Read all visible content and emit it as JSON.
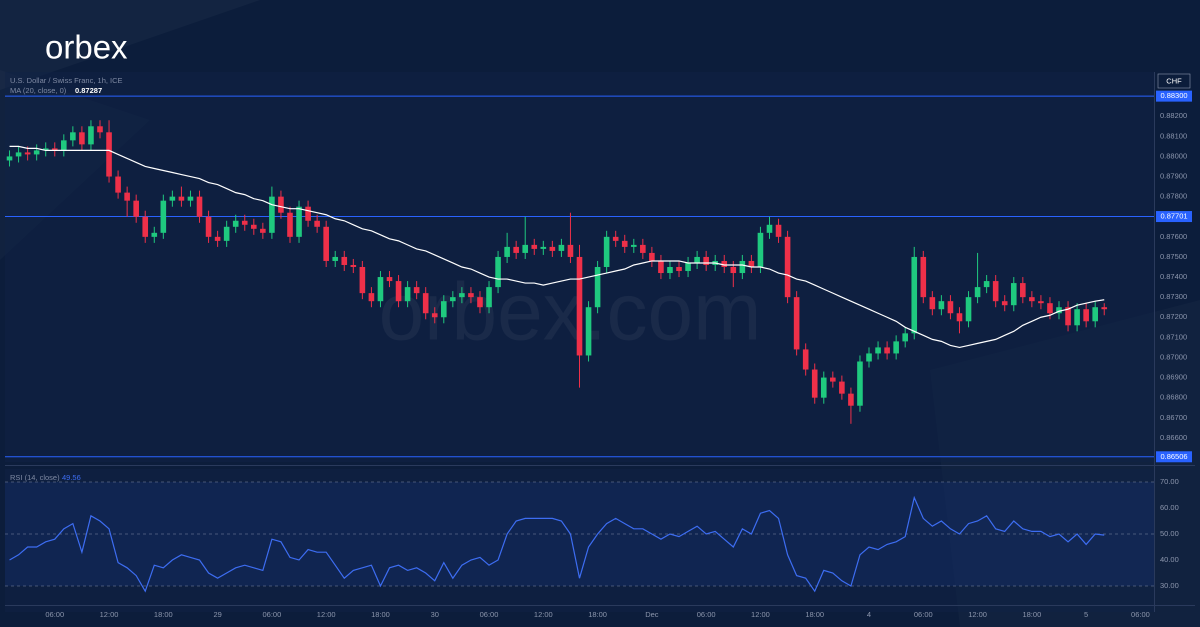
{
  "brand": {
    "logo": "orbex",
    "watermark": "orbex.com"
  },
  "chart_data": [
    {
      "type": "candlestick",
      "title": "U.S. Dollar / Swiss Franc, 1h, ICE",
      "currency": "CHF",
      "up_color": "#1fc97f",
      "down_color": "#ee3049",
      "xlim": [
        0.5,
        127.5
      ],
      "xticks": [
        {
          "value": 6,
          "label": "06:00"
        },
        {
          "value": 12,
          "label": "12:00"
        },
        {
          "value": 18,
          "label": "18:00"
        },
        {
          "value": 24,
          "label": "29"
        },
        {
          "value": 30,
          "label": "06:00"
        },
        {
          "value": 36,
          "label": "12:00"
        },
        {
          "value": 42,
          "label": "18:00"
        },
        {
          "value": 48,
          "label": "30"
        },
        {
          "value": 54,
          "label": "06:00"
        },
        {
          "value": 60,
          "label": "12:00"
        },
        {
          "value": 66,
          "label": "18:00"
        },
        {
          "value": 72,
          "label": "Dec"
        },
        {
          "value": 78,
          "label": "06:00"
        },
        {
          "value": 84,
          "label": "12:00"
        },
        {
          "value": 90,
          "label": "18:00"
        },
        {
          "value": 96,
          "label": "4"
        },
        {
          "value": 102,
          "label": "06:00"
        },
        {
          "value": 108,
          "label": "12:00"
        },
        {
          "value": 114,
          "label": "18:00"
        },
        {
          "value": 120,
          "label": "5"
        },
        {
          "value": 126,
          "label": "06:00"
        }
      ],
      "ylim": [
        0.8648,
        0.8842
      ],
      "yticks": [
        {
          "value": 0.866,
          "label": "0.86600"
        },
        {
          "value": 0.867,
          "label": "0.86700"
        },
        {
          "value": 0.868,
          "label": "0.86800"
        },
        {
          "value": 0.869,
          "label": "0.86900"
        },
        {
          "value": 0.87,
          "label": "0.87000"
        },
        {
          "value": 0.871,
          "label": "0.87100"
        },
        {
          "value": 0.872,
          "label": "0.87200"
        },
        {
          "value": 0.873,
          "label": "0.87300"
        },
        {
          "value": 0.874,
          "label": "0.87400"
        },
        {
          "value": 0.875,
          "label": "0.87500"
        },
        {
          "value": 0.876,
          "label": "0.87600"
        },
        {
          "value": 0.877,
          "label": "0.87700"
        },
        {
          "value": 0.878,
          "label": "0.87800"
        },
        {
          "value": 0.879,
          "label": "0.87900"
        },
        {
          "value": 0.88,
          "label": "0.88000"
        },
        {
          "value": 0.881,
          "label": "0.88100"
        },
        {
          "value": 0.882,
          "label": "0.88200"
        }
      ],
      "lines": [
        {
          "value": 0.883,
          "label": "0.88300"
        },
        {
          "value": 0.87701,
          "label": "0.87701"
        },
        {
          "value": 0.86506,
          "label": "0.86506"
        }
      ],
      "line_color": "#2962ff",
      "x": [
        1,
        2,
        3,
        4,
        5,
        6,
        7,
        8,
        9,
        10,
        11,
        12,
        13,
        14,
        15,
        16,
        17,
        18,
        19,
        20,
        21,
        22,
        23,
        24,
        25,
        26,
        27,
        28,
        29,
        30,
        31,
        32,
        33,
        34,
        35,
        36,
        37,
        38,
        39,
        40,
        41,
        42,
        43,
        44,
        45,
        46,
        47,
        48,
        49,
        50,
        51,
        52,
        53,
        54,
        55,
        56,
        57,
        58,
        59,
        60,
        61,
        62,
        63,
        64,
        65,
        66,
        67,
        68,
        69,
        70,
        71,
        72,
        73,
        74,
        75,
        76,
        77,
        78,
        79,
        80,
        81,
        82,
        83,
        84,
        85,
        86,
        87,
        88,
        89,
        90,
        91,
        92,
        93,
        94,
        95,
        96,
        97,
        98,
        99,
        100,
        101,
        102,
        103,
        104,
        105,
        106,
        107,
        108,
        109,
        110,
        111,
        112,
        113,
        114,
        115,
        116,
        117,
        118,
        119,
        120,
        121,
        122
      ],
      "open": [
        0.8798,
        0.88,
        0.8802,
        0.8801,
        0.8803,
        0.8804,
        0.8803,
        0.8808,
        0.8812,
        0.8806,
        0.8815,
        0.8812,
        0.879,
        0.8782,
        0.8778,
        0.877,
        0.876,
        0.8762,
        0.8778,
        0.878,
        0.8778,
        0.878,
        0.877,
        0.876,
        0.8758,
        0.8765,
        0.8768,
        0.8766,
        0.8764,
        0.8762,
        0.878,
        0.8772,
        0.876,
        0.8775,
        0.8768,
        0.8765,
        0.8748,
        0.875,
        0.8746,
        0.8745,
        0.8732,
        0.8728,
        0.874,
        0.8738,
        0.8728,
        0.8735,
        0.8732,
        0.8722,
        0.872,
        0.8728,
        0.873,
        0.8732,
        0.873,
        0.8725,
        0.8735,
        0.875,
        0.8755,
        0.8752,
        0.8756,
        0.8754,
        0.8755,
        0.8753,
        0.8756,
        0.875,
        0.8701,
        0.8725,
        0.8745,
        0.876,
        0.8758,
        0.8755,
        0.8756,
        0.8752,
        0.8748,
        0.8742,
        0.8745,
        0.8743,
        0.8747,
        0.875,
        0.8746,
        0.8748,
        0.8745,
        0.8742,
        0.8748,
        0.8745,
        0.8762,
        0.8766,
        0.876,
        0.873,
        0.8704,
        0.8694,
        0.868,
        0.869,
        0.8688,
        0.8682,
        0.8676,
        0.8698,
        0.8702,
        0.8705,
        0.8702,
        0.8708,
        0.8712,
        0.875,
        0.873,
        0.8724,
        0.8728,
        0.8722,
        0.8718,
        0.873,
        0.8735,
        0.8738,
        0.8728,
        0.8726,
        0.8737,
        0.873,
        0.8728,
        0.8727,
        0.8722,
        0.8725,
        0.8716,
        0.8724,
        0.8718,
        0.8725
      ],
      "high": [
        0.8803,
        0.8805,
        0.8805,
        0.8806,
        0.8807,
        0.8807,
        0.8811,
        0.8815,
        0.8815,
        0.8818,
        0.8818,
        0.8818,
        0.8793,
        0.8785,
        0.8781,
        0.8773,
        0.8765,
        0.8781,
        0.8783,
        0.8785,
        0.8783,
        0.8783,
        0.8773,
        0.8763,
        0.8768,
        0.8771,
        0.8771,
        0.8769,
        0.8767,
        0.8785,
        0.8783,
        0.8775,
        0.8778,
        0.8778,
        0.8771,
        0.8768,
        0.8753,
        0.8753,
        0.8749,
        0.8748,
        0.8735,
        0.8743,
        0.8743,
        0.8741,
        0.8738,
        0.8738,
        0.8735,
        0.8725,
        0.8731,
        0.8733,
        0.8735,
        0.8735,
        0.8733,
        0.8738,
        0.8753,
        0.8762,
        0.8758,
        0.877,
        0.8759,
        0.8758,
        0.8758,
        0.8759,
        0.8772,
        0.8756,
        0.8728,
        0.8748,
        0.8763,
        0.8763,
        0.8761,
        0.8759,
        0.8759,
        0.8755,
        0.8751,
        0.8748,
        0.8748,
        0.875,
        0.8753,
        0.8753,
        0.8751,
        0.8751,
        0.8748,
        0.8751,
        0.8751,
        0.8765,
        0.877,
        0.8769,
        0.8763,
        0.8733,
        0.8707,
        0.8697,
        0.8693,
        0.8693,
        0.8691,
        0.8685,
        0.8701,
        0.8705,
        0.8708,
        0.8708,
        0.8711,
        0.8715,
        0.8755,
        0.8753,
        0.8733,
        0.8731,
        0.8731,
        0.8725,
        0.8733,
        0.8752,
        0.8741,
        0.8741,
        0.8731,
        0.874,
        0.874,
        0.8733,
        0.8731,
        0.873,
        0.8728,
        0.8728,
        0.8727,
        0.8727,
        0.8728,
        0.8727
      ],
      "low": [
        0.8795,
        0.8797,
        0.8798,
        0.8798,
        0.88,
        0.88,
        0.88,
        0.8805,
        0.8803,
        0.8803,
        0.8809,
        0.8787,
        0.8779,
        0.877,
        0.8767,
        0.8757,
        0.8757,
        0.8759,
        0.8775,
        0.8775,
        0.8775,
        0.8767,
        0.8757,
        0.8755,
        0.8755,
        0.8762,
        0.8763,
        0.8761,
        0.8759,
        0.8759,
        0.8769,
        0.8757,
        0.8757,
        0.8765,
        0.8762,
        0.8745,
        0.8745,
        0.8743,
        0.8742,
        0.8729,
        0.8725,
        0.8725,
        0.8735,
        0.8725,
        0.8725,
        0.8729,
        0.8719,
        0.8717,
        0.8717,
        0.8725,
        0.8727,
        0.8727,
        0.8722,
        0.8722,
        0.8732,
        0.8747,
        0.8749,
        0.8749,
        0.8751,
        0.8751,
        0.875,
        0.875,
        0.8747,
        0.8685,
        0.8698,
        0.8722,
        0.8742,
        0.8755,
        0.8752,
        0.8752,
        0.8749,
        0.8745,
        0.8739,
        0.8739,
        0.874,
        0.874,
        0.8744,
        0.8743,
        0.8743,
        0.8742,
        0.8735,
        0.8739,
        0.8742,
        0.8742,
        0.8759,
        0.8757,
        0.8727,
        0.8701,
        0.8691,
        0.8677,
        0.8677,
        0.8685,
        0.8679,
        0.8667,
        0.8673,
        0.8695,
        0.8699,
        0.8699,
        0.8699,
        0.8705,
        0.8709,
        0.8727,
        0.8721,
        0.8721,
        0.8719,
        0.8712,
        0.8715,
        0.8727,
        0.8732,
        0.8725,
        0.8723,
        0.8723,
        0.8727,
        0.8725,
        0.8724,
        0.8719,
        0.8719,
        0.8713,
        0.8713,
        0.8715,
        0.8715,
        0.8721
      ],
      "close": [
        0.88,
        0.8802,
        0.8801,
        0.8803,
        0.8804,
        0.8803,
        0.8808,
        0.8812,
        0.8806,
        0.8815,
        0.8812,
        0.879,
        0.8782,
        0.8778,
        0.877,
        0.876,
        0.8762,
        0.8778,
        0.878,
        0.8778,
        0.878,
        0.877,
        0.876,
        0.8758,
        0.8765,
        0.8768,
        0.8766,
        0.8764,
        0.8762,
        0.878,
        0.8772,
        0.876,
        0.8775,
        0.8768,
        0.8765,
        0.8748,
        0.875,
        0.8746,
        0.8745,
        0.8732,
        0.8728,
        0.874,
        0.8738,
        0.8728,
        0.8735,
        0.8732,
        0.8722,
        0.872,
        0.8728,
        0.873,
        0.8732,
        0.873,
        0.8725,
        0.8735,
        0.875,
        0.8755,
        0.8752,
        0.8756,
        0.8754,
        0.8755,
        0.8753,
        0.8756,
        0.875,
        0.8701,
        0.8725,
        0.8745,
        0.876,
        0.8758,
        0.8755,
        0.8756,
        0.8752,
        0.8748,
        0.8742,
        0.8745,
        0.8743,
        0.8747,
        0.875,
        0.8746,
        0.8748,
        0.8745,
        0.8742,
        0.8748,
        0.8745,
        0.8762,
        0.8766,
        0.876,
        0.873,
        0.8704,
        0.8694,
        0.868,
        0.869,
        0.8688,
        0.8682,
        0.8676,
        0.8698,
        0.8702,
        0.8705,
        0.8702,
        0.8708,
        0.8712,
        0.875,
        0.873,
        0.8724,
        0.8728,
        0.8722,
        0.8718,
        0.873,
        0.8735,
        0.8738,
        0.8728,
        0.8726,
        0.8737,
        0.873,
        0.8728,
        0.8727,
        0.8722,
        0.8725,
        0.8716,
        0.8724,
        0.8718,
        0.8725,
        0.8724
      ],
      "series": [
        {
          "name": "MA (20, close, 0)",
          "color": "#ffffff",
          "values": [
            0.8805,
            0.8805,
            0.8804,
            0.8804,
            0.8803,
            0.8803,
            0.8803,
            0.8803,
            0.8803,
            0.8803,
            0.8803,
            0.8803,
            0.8801,
            0.8799,
            0.8797,
            0.8795,
            0.8794,
            0.8793,
            0.8792,
            0.8791,
            0.879,
            0.8789,
            0.8787,
            0.8786,
            0.8784,
            0.8782,
            0.8781,
            0.8779,
            0.8778,
            0.8776,
            0.8775,
            0.8774,
            0.8774,
            0.8773,
            0.8772,
            0.8771,
            0.8769,
            0.8768,
            0.8766,
            0.8764,
            0.8763,
            0.8761,
            0.8759,
            0.8758,
            0.8756,
            0.8754,
            0.8753,
            0.8751,
            0.8749,
            0.8747,
            0.8745,
            0.8744,
            0.8742,
            0.874,
            0.8739,
            0.8739,
            0.8738,
            0.8737,
            0.8737,
            0.8736,
            0.8737,
            0.8738,
            0.8739,
            0.8739,
            0.874,
            0.8741,
            0.8742,
            0.8743,
            0.8744,
            0.8746,
            0.8747,
            0.8748,
            0.8748,
            0.8748,
            0.8748,
            0.8747,
            0.8747,
            0.8747,
            0.8747,
            0.8746,
            0.8746,
            0.8746,
            0.8745,
            0.8745,
            0.8744,
            0.8742,
            0.8741,
            0.8739,
            0.8738,
            0.8736,
            0.8734,
            0.8732,
            0.873,
            0.8728,
            0.8726,
            0.8724,
            0.8722,
            0.872,
            0.8718,
            0.8715,
            0.8713,
            0.8711,
            0.8709,
            0.8708,
            0.8706,
            0.8705,
            0.8706,
            0.8707,
            0.8708,
            0.8709,
            0.8711,
            0.8713,
            0.8716,
            0.8718,
            0.872,
            0.8721,
            0.8723,
            0.8724,
            0.8726,
            0.8727,
            0.8728,
            0.87287
          ]
        }
      ]
    },
    {
      "type": "line",
      "ylim": [
        20,
        75
      ],
      "yticks": [
        {
          "value": 30,
          "label": "30.00"
        },
        {
          "value": 40,
          "label": "40.00"
        },
        {
          "value": 50,
          "label": "50.00"
        },
        {
          "value": 60,
          "label": "60.00"
        },
        {
          "value": 70,
          "label": "70.00"
        }
      ],
      "band": [
        30,
        70
      ],
      "dashed": [
        30,
        50,
        70
      ],
      "series": [
        {
          "name": "RSI (14, close)",
          "color": "#3d6df2",
          "values": [
            40,
            42,
            45,
            45,
            47,
            48,
            52,
            54,
            43,
            57,
            55,
            52,
            39,
            37,
            34,
            28,
            38,
            37,
            40,
            42,
            41,
            40,
            35,
            33,
            35,
            37,
            38,
            37,
            36,
            48,
            47,
            41,
            40,
            44,
            43,
            43,
            38,
            33,
            36,
            37,
            38,
            30,
            37,
            38,
            36,
            37,
            35,
            32,
            39,
            33,
            38,
            40,
            41,
            38,
            40,
            50,
            55,
            56,
            56,
            56,
            56,
            55,
            50,
            33,
            45,
            50,
            54,
            56,
            54,
            52,
            52,
            50,
            48,
            50,
            49,
            51,
            53,
            50,
            51,
            48,
            45,
            52,
            50,
            58,
            59,
            56,
            42,
            34,
            33,
            28,
            36,
            35,
            32,
            30,
            42,
            45,
            44,
            46,
            47,
            49,
            64,
            56,
            53,
            55,
            52,
            50,
            54,
            55,
            57,
            52,
            51,
            55,
            52,
            51,
            51,
            49,
            50,
            47,
            50,
            46,
            50,
            49.56
          ]
        }
      ]
    }
  ]
}
